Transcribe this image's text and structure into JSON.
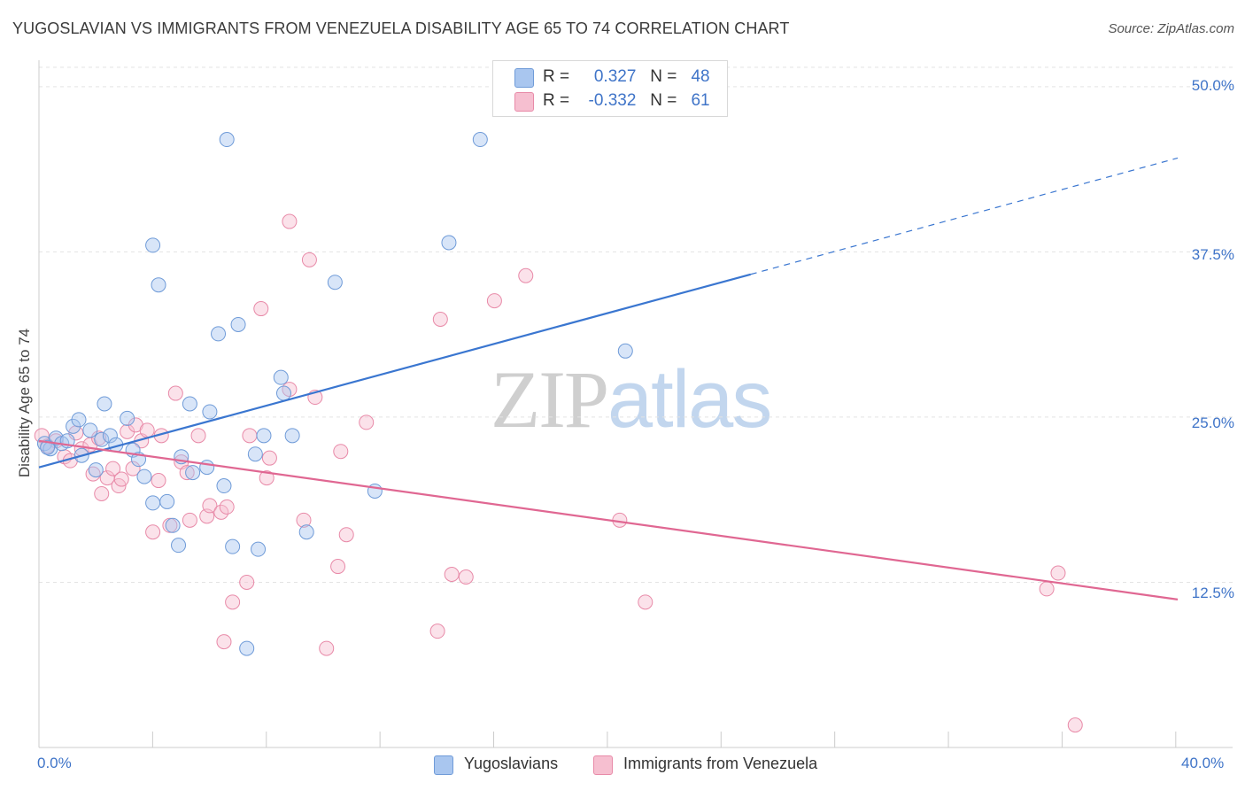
{
  "title": "YUGOSLAVIAN VS IMMIGRANTS FROM VENEZUELA DISABILITY AGE 65 TO 74 CORRELATION CHART",
  "source": "Source: ZipAtlas.com",
  "watermark": {
    "zip": "ZIP",
    "atlas": "atlas"
  },
  "legend": {
    "rows": [
      {
        "r_label": "R =",
        "r_value": "0.327",
        "n_label": "N =",
        "n_value": "48"
      },
      {
        "r_label": "R =",
        "r_value": "-0.332",
        "n_label": "N =",
        "n_value": "61"
      }
    ]
  },
  "colors": {
    "blue_fill": "#a9c6ef",
    "blue_stroke": "#6f9bd8",
    "blue_line": "#3a76d0",
    "pink_fill": "#f6bfd0",
    "pink_stroke": "#e88aa8",
    "pink_line": "#e06792",
    "axis_text": "#3f74c8",
    "grid": "#e3e3e3"
  },
  "chart_data": {
    "type": "scatter",
    "title": "YUGOSLAVIAN VS IMMIGRANTS FROM VENEZUELA DISABILITY AGE 65 TO 74 CORRELATION CHART",
    "xlabel": "",
    "ylabel": "Disability Age 65 to 74",
    "xlim": [
      0,
      40
    ],
    "ylim": [
      0,
      52
    ],
    "x_tick_labels": [
      "0.0%",
      "40.0%"
    ],
    "y_tick_labels": [
      "12.5%",
      "25.0%",
      "37.5%",
      "50.0%"
    ],
    "y_ticks": [
      12.5,
      25.0,
      37.5,
      50.0
    ],
    "grid": true,
    "legend_placement": "top-center",
    "series": [
      {
        "name": "Yugoslavians",
        "color": "#a9c6ef",
        "r": 0.327,
        "n": 48,
        "points": [
          [
            0.2,
            23.0
          ],
          [
            0.4,
            22.6
          ],
          [
            0.6,
            23.4
          ],
          [
            0.8,
            23.0
          ],
          [
            1.2,
            24.3
          ],
          [
            1.4,
            24.8
          ],
          [
            1.5,
            22.1
          ],
          [
            1.8,
            24.0
          ],
          [
            2.0,
            21.0
          ],
          [
            2.2,
            23.3
          ],
          [
            2.3,
            26.0
          ],
          [
            2.5,
            23.6
          ],
          [
            2.7,
            22.9
          ],
          [
            3.1,
            24.9
          ],
          [
            3.3,
            22.5
          ],
          [
            3.5,
            21.8
          ],
          [
            3.7,
            20.5
          ],
          [
            4.0,
            38.0
          ],
          [
            4.0,
            18.5
          ],
          [
            4.2,
            35.0
          ],
          [
            4.5,
            18.6
          ],
          [
            4.7,
            16.8
          ],
          [
            4.9,
            15.3
          ],
          [
            5.0,
            22.0
          ],
          [
            5.3,
            26.0
          ],
          [
            5.4,
            20.8
          ],
          [
            5.9,
            21.2
          ],
          [
            6.0,
            25.4
          ],
          [
            6.3,
            31.3
          ],
          [
            6.5,
            19.8
          ],
          [
            6.6,
            46.0
          ],
          [
            6.8,
            15.2
          ],
          [
            7.0,
            32.0
          ],
          [
            7.3,
            7.5
          ],
          [
            7.6,
            22.2
          ],
          [
            7.7,
            15.0
          ],
          [
            7.9,
            23.6
          ],
          [
            8.5,
            28.0
          ],
          [
            8.6,
            26.8
          ],
          [
            8.9,
            23.6
          ],
          [
            9.4,
            16.3
          ],
          [
            10.4,
            35.2
          ],
          [
            11.8,
            19.4
          ],
          [
            14.4,
            38.2
          ],
          [
            15.5,
            46.0
          ],
          [
            20.6,
            30.0
          ],
          [
            0.3,
            22.7
          ],
          [
            1.0,
            23.2
          ]
        ]
      },
      {
        "name": "Immigrants from Venezuela",
        "color": "#f6bfd0",
        "r": -0.332,
        "n": 61,
        "points": [
          [
            0.1,
            23.6
          ],
          [
            0.3,
            22.8
          ],
          [
            0.6,
            23.2
          ],
          [
            0.9,
            22.0
          ],
          [
            1.1,
            21.7
          ],
          [
            1.3,
            23.8
          ],
          [
            1.5,
            22.6
          ],
          [
            1.8,
            22.9
          ],
          [
            1.9,
            20.7
          ],
          [
            2.1,
            23.4
          ],
          [
            2.2,
            19.2
          ],
          [
            2.4,
            20.4
          ],
          [
            2.6,
            21.1
          ],
          [
            2.8,
            19.8
          ],
          [
            2.9,
            20.3
          ],
          [
            3.1,
            23.9
          ],
          [
            3.3,
            21.1
          ],
          [
            3.4,
            24.4
          ],
          [
            3.6,
            23.2
          ],
          [
            3.8,
            24.0
          ],
          [
            4.0,
            16.3
          ],
          [
            4.2,
            20.2
          ],
          [
            4.3,
            23.6
          ],
          [
            4.6,
            16.8
          ],
          [
            4.8,
            26.8
          ],
          [
            5.0,
            21.6
          ],
          [
            5.2,
            20.8
          ],
          [
            5.3,
            17.2
          ],
          [
            5.6,
            23.6
          ],
          [
            5.9,
            17.5
          ],
          [
            6.0,
            18.3
          ],
          [
            6.4,
            17.8
          ],
          [
            6.5,
            8.0
          ],
          [
            6.6,
            18.2
          ],
          [
            6.8,
            11.0
          ],
          [
            7.3,
            12.5
          ],
          [
            7.4,
            23.6
          ],
          [
            7.8,
            33.2
          ],
          [
            8.0,
            20.4
          ],
          [
            8.1,
            21.9
          ],
          [
            8.8,
            39.8
          ],
          [
            8.8,
            27.1
          ],
          [
            9.3,
            17.2
          ],
          [
            9.5,
            36.9
          ],
          [
            9.7,
            26.5
          ],
          [
            10.1,
            7.5
          ],
          [
            10.5,
            13.7
          ],
          [
            10.6,
            22.4
          ],
          [
            10.8,
            16.1
          ],
          [
            11.5,
            24.6
          ],
          [
            14.0,
            8.8
          ],
          [
            14.1,
            32.4
          ],
          [
            14.5,
            13.1
          ],
          [
            15.0,
            12.9
          ],
          [
            16.0,
            33.8
          ],
          [
            17.1,
            35.7
          ],
          [
            20.4,
            17.2
          ],
          [
            21.3,
            11.0
          ],
          [
            35.4,
            12.0
          ],
          [
            35.8,
            13.2
          ],
          [
            36.4,
            1.7
          ]
        ]
      }
    ],
    "trend_lines": [
      {
        "series": "Yugoslavians",
        "solid": [
          [
            0,
            21.2
          ],
          [
            25,
            35.8
          ]
        ],
        "dashed": [
          [
            25,
            35.8
          ],
          [
            40,
            44.6
          ]
        ]
      },
      {
        "series": "Immigrants from Venezuela",
        "solid": [
          [
            0,
            23.2
          ],
          [
            40,
            11.2
          ]
        ]
      }
    ]
  },
  "bottom_legend": [
    {
      "label": "Yugoslavians"
    },
    {
      "label": "Immigrants from Venezuela"
    }
  ]
}
